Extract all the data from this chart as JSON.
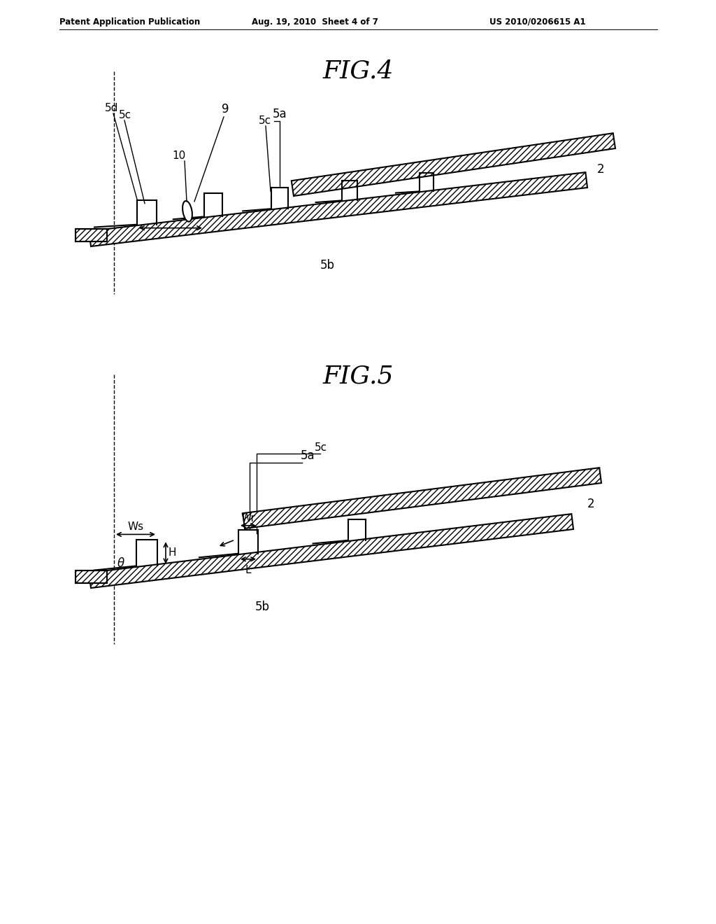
{
  "bg_color": "#ffffff",
  "text_color": "#000000",
  "line_color": "#000000",
  "header_left": "Patent Application Publication",
  "header_mid": "Aug. 19, 2010  Sheet 4 of 7",
  "header_right": "US 2010/0206615 A1",
  "fig4_title": "FIG.4",
  "fig5_title": "FIG.5",
  "fig_width": 10.24,
  "fig_height": 13.2
}
